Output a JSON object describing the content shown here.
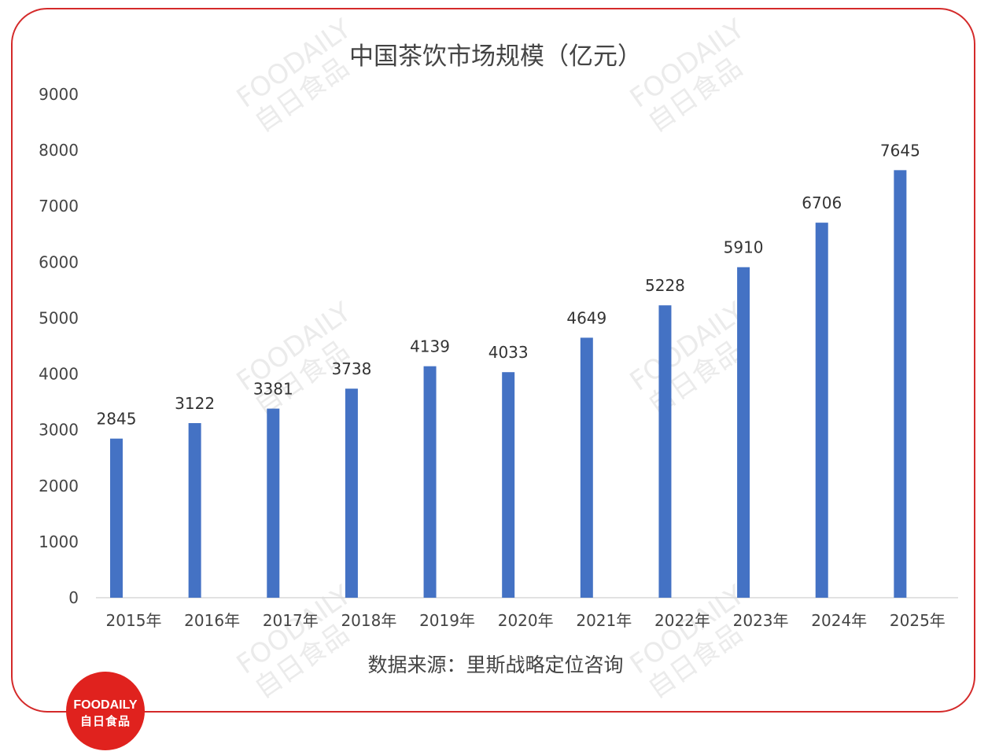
{
  "colors": {
    "frame": "#d42a2a",
    "bar": "#4472c4",
    "text": "#444444",
    "logo_bg": "#e0221e",
    "watermark": "#dcdcdc"
  },
  "chart_data": {
    "type": "bar",
    "title": "中国茶饮市场规模（亿元）",
    "categories": [
      "2015年",
      "2016年",
      "2017年",
      "2018年",
      "2019年",
      "2020年",
      "2021年",
      "2022年",
      "2023年",
      "2024年",
      "2025年"
    ],
    "values": [
      2845,
      3122,
      3381,
      3738,
      4139,
      4033,
      4649,
      5228,
      5910,
      6706,
      7645
    ],
    "ylim": [
      0,
      9000
    ],
    "yticks": [
      0,
      1000,
      2000,
      3000,
      4000,
      5000,
      6000,
      7000,
      8000,
      9000
    ],
    "xlabel": "",
    "ylabel": "",
    "grid": false,
    "legend": "none",
    "source_note": "数据来源：里斯战略定位咨询"
  },
  "watermark": {
    "text": "FOODAILY",
    "text_cn": "自日食品"
  },
  "logo": {
    "line1": "FOODAILY",
    "line2": "自日食品"
  }
}
